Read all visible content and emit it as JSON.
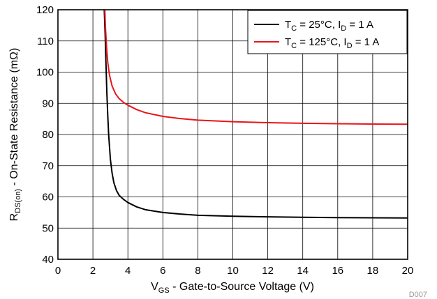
{
  "chart_data": {
    "type": "line",
    "xlabel": "V_GS - Gate-to-Source Voltage (V)",
    "ylabel": "R_DS(on) - On-State Resistance (mΩ)",
    "xlim": [
      0,
      20
    ],
    "ylim": [
      40,
      120
    ],
    "x_ticks": [
      0,
      2,
      4,
      6,
      8,
      10,
      12,
      14,
      16,
      18,
      20
    ],
    "y_ticks": [
      40,
      50,
      60,
      70,
      80,
      90,
      100,
      110,
      120
    ],
    "grid": true,
    "legend_position": "top-right",
    "figure_code": "D007",
    "series": [
      {
        "name": "T_C = 25°C, I_D = 1 A",
        "color": "#000000",
        "points": [
          [
            2.65,
            120
          ],
          [
            2.7,
            112
          ],
          [
            2.75,
            102
          ],
          [
            2.8,
            93
          ],
          [
            2.85,
            86
          ],
          [
            2.9,
            80
          ],
          [
            3.0,
            72
          ],
          [
            3.1,
            67.5
          ],
          [
            3.2,
            64.5
          ],
          [
            3.35,
            62
          ],
          [
            3.5,
            60.5
          ],
          [
            3.75,
            59.2
          ],
          [
            4,
            58.2
          ],
          [
            4.5,
            56.8
          ],
          [
            5,
            55.9
          ],
          [
            6,
            55
          ],
          [
            7,
            54.5
          ],
          [
            8,
            54.1
          ],
          [
            10,
            53.8
          ],
          [
            12,
            53.6
          ],
          [
            14,
            53.45
          ],
          [
            16,
            53.35
          ],
          [
            18,
            53.3
          ],
          [
            20,
            53.25
          ]
        ]
      },
      {
        "name": "T_C = 125°C, I_D = 1 A",
        "color": "#e8141a",
        "points": [
          [
            2.68,
            120
          ],
          [
            2.72,
            114
          ],
          [
            2.78,
            108
          ],
          [
            2.85,
            103
          ],
          [
            2.95,
            99
          ],
          [
            3.1,
            95.5
          ],
          [
            3.3,
            93
          ],
          [
            3.5,
            91.5
          ],
          [
            3.75,
            90.3
          ],
          [
            4,
            89.4
          ],
          [
            4.5,
            88
          ],
          [
            5,
            87
          ],
          [
            6,
            85.8
          ],
          [
            7,
            85.1
          ],
          [
            8,
            84.6
          ],
          [
            10,
            84.1
          ],
          [
            12,
            83.8
          ],
          [
            14,
            83.6
          ],
          [
            16,
            83.45
          ],
          [
            18,
            83.35
          ],
          [
            20,
            83.3
          ]
        ]
      }
    ]
  }
}
